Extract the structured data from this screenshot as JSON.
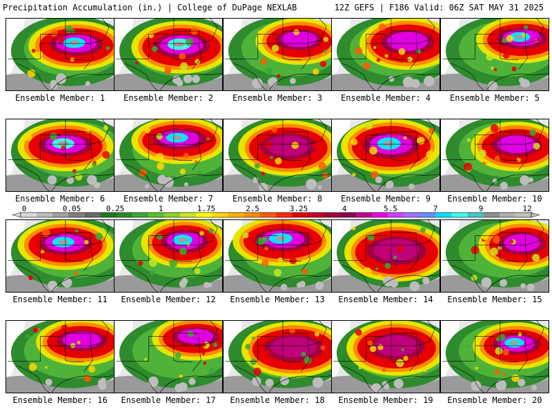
{
  "header": {
    "title": "Precipitation Accumulation (in.) | College of DuPage NEXLAB",
    "run_info": "12Z GEFS | F186 Valid: 06Z SAT MAY 31 2025"
  },
  "colorbar": {
    "tick_labels": [
      "0",
      "0.05",
      "0.25",
      "1",
      "1.75",
      "2.5",
      "3.25",
      "4",
      "5.5",
      "7",
      "9",
      "12"
    ],
    "colors": [
      "#d9d9d9",
      "#bdbdbd",
      "#a0a0a0",
      "#808080",
      "#6b6b6b",
      "#1f7a1f",
      "#2a8c2a",
      "#39a839",
      "#5cbf2a",
      "#8fd12a",
      "#c8e61e",
      "#ffff00",
      "#ffd700",
      "#ffb000",
      "#ff8c00",
      "#ff5a00",
      "#ff2a00",
      "#e60000",
      "#c8001e",
      "#a0003c",
      "#8c0050",
      "#c00090",
      "#e600e6",
      "#d040ff",
      "#a070ff",
      "#6090ff",
      "#00e0ff",
      "#40ffe8",
      "#40c8c8",
      "#909090",
      "#b0b0b0",
      "#c0c0c0"
    ]
  },
  "panels": [
    {
      "label": "Ensemble Member: 1"
    },
    {
      "label": "Ensemble Member: 2"
    },
    {
      "label": "Ensemble Member: 3"
    },
    {
      "label": "Ensemble Member: 4"
    },
    {
      "label": "Ensemble Member: 5"
    },
    {
      "label": "Ensemble Member: 6"
    },
    {
      "label": "Ensemble Member: 7"
    },
    {
      "label": "Ensemble Member: 8"
    },
    {
      "label": "Ensemble Member: 9"
    },
    {
      "label": "Ensemble Member: 10"
    },
    {
      "label": "Ensemble Member: 11"
    },
    {
      "label": "Ensemble Member: 12"
    },
    {
      "label": "Ensemble Member: 13"
    },
    {
      "label": "Ensemble Member: 14"
    },
    {
      "label": "Ensemble Member: 15"
    },
    {
      "label": "Ensemble Member: 16"
    },
    {
      "label": "Ensemble Member: 17"
    },
    {
      "label": "Ensemble Member: 18"
    },
    {
      "label": "Ensemble Member: 19"
    },
    {
      "label": "Ensemble Member: 20"
    }
  ],
  "colors": {
    "background": "#ffffff",
    "border": "#000000",
    "base_green": "#2e8b2e",
    "heavy_core": "#e60000",
    "extreme_core": "#d000d0"
  }
}
